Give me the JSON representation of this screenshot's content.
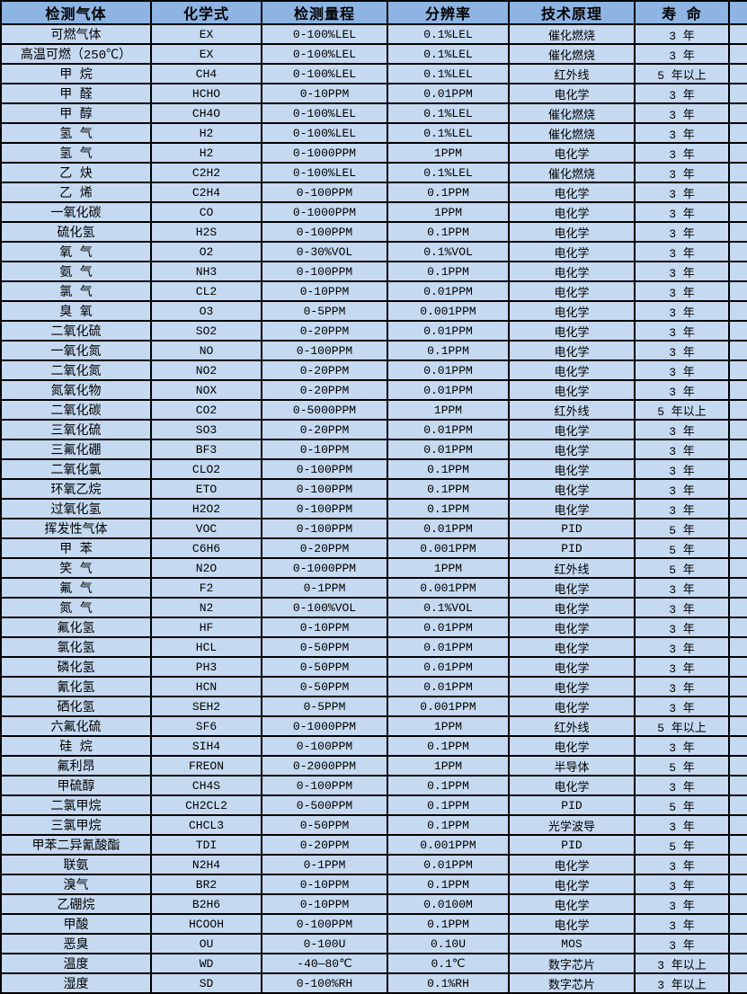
{
  "colors": {
    "header_bg": "#8db4e2",
    "row_bg": "#c5d9f1",
    "border": "#000000",
    "text": "#000000"
  },
  "table": {
    "columns": [
      {
        "key": "gas",
        "label": "检测气体"
      },
      {
        "key": "formula",
        "label": "化学式"
      },
      {
        "key": "range",
        "label": "检测量程"
      },
      {
        "key": "resolution",
        "label": "分辨率"
      },
      {
        "key": "principle",
        "label": "技术原理"
      },
      {
        "key": "lifespan",
        "label": "寿 命"
      }
    ],
    "rows": [
      [
        "可燃气体",
        "EX",
        "0-100%LEL",
        "0.1%LEL",
        "催化燃烧",
        "3 年"
      ],
      [
        "高温可燃（250℃）",
        "EX",
        "0-100%LEL",
        "0.1%LEL",
        "催化燃烧",
        "3 年"
      ],
      [
        "甲 烷",
        "CH4",
        "0-100%LEL",
        "0.1%LEL",
        "红外线",
        "5 年以上"
      ],
      [
        "甲 醛",
        "HCHO",
        "0-10PPM",
        "0.01PPM",
        "电化学",
        "3 年"
      ],
      [
        "甲 醇",
        "CH4O",
        "0-100%LEL",
        "0.1%LEL",
        "催化燃烧",
        "3 年"
      ],
      [
        "氢 气",
        "H2",
        "0-100%LEL",
        "0.1%LEL",
        "催化燃烧",
        "3 年"
      ],
      [
        "氢 气",
        "H2",
        "0-1000PPM",
        "1PPM",
        "电化学",
        "3 年"
      ],
      [
        "乙 炔",
        "C2H2",
        "0-100%LEL",
        "0.1%LEL",
        "催化燃烧",
        "3 年"
      ],
      [
        "乙 烯",
        "C2H4",
        "0-100PPM",
        "0.1PPM",
        "电化学",
        "3 年"
      ],
      [
        "一氧化碳",
        "CO",
        "0-1000PPM",
        "1PPM",
        "电化学",
        "3 年"
      ],
      [
        "硫化氢",
        "H2S",
        "0-100PPM",
        "0.1PPM",
        "电化学",
        "3 年"
      ],
      [
        "氧 气",
        "O2",
        "0-30%VOL",
        "0.1%VOL",
        "电化学",
        "3 年"
      ],
      [
        "氨 气",
        "NH3",
        "0-100PPM",
        "0.1PPM",
        "电化学",
        "3 年"
      ],
      [
        "氯 气",
        "CL2",
        "0-10PPM",
        "0.01PPM",
        "电化学",
        "3 年"
      ],
      [
        "臭 氧",
        "O3",
        "0-5PPM",
        "0.001PPM",
        "电化学",
        "3 年"
      ],
      [
        "二氧化硫",
        "SO2",
        "0-20PPM",
        "0.01PPM",
        "电化学",
        "3 年"
      ],
      [
        "一氧化氮",
        "NO",
        "0-100PPM",
        "0.1PPM",
        "电化学",
        "3 年"
      ],
      [
        "二氧化氮",
        "NO2",
        "0-20PPM",
        "0.01PPM",
        "电化学",
        "3 年"
      ],
      [
        "氮氧化物",
        "NOX",
        "0-20PPM",
        "0.01PPM",
        "电化学",
        "3 年"
      ],
      [
        "二氧化碳",
        "CO2",
        "0-5000PPM",
        "1PPM",
        "红外线",
        "5 年以上"
      ],
      [
        "三氧化硫",
        "SO3",
        "0-20PPM",
        "0.01PPM",
        "电化学",
        "3 年"
      ],
      [
        "三氟化硼",
        "BF3",
        "0-10PPM",
        "0.01PPM",
        "电化学",
        "3 年"
      ],
      [
        "二氧化氯",
        "CLO2",
        "0-100PPM",
        "0.1PPM",
        "电化学",
        "3 年"
      ],
      [
        "环氧乙烷",
        "ETO",
        "0-100PPM",
        "0.1PPM",
        "电化学",
        "3 年"
      ],
      [
        "过氧化氢",
        "H2O2",
        "0-100PPM",
        "0.1PPM",
        "电化学",
        "3 年"
      ],
      [
        "挥发性气体",
        "VOC",
        "0-100PPM",
        "0.01PPM",
        "PID",
        "5 年"
      ],
      [
        "甲 苯",
        "C6H6",
        "0-20PPM",
        "0.001PPM",
        "PID",
        "5 年"
      ],
      [
        "笑 气",
        "N2O",
        "0-1000PPM",
        "1PPM",
        "红外线",
        "5 年"
      ],
      [
        "氟 气",
        "F2",
        "0-1PPM",
        "0.001PPM",
        "电化学",
        "3 年"
      ],
      [
        "氮 气",
        "N2",
        "0-100%VOL",
        "0.1%VOL",
        "电化学",
        "3 年"
      ],
      [
        "氟化氢",
        "HF",
        "0-10PPM",
        "0.01PPM",
        "电化学",
        "3 年"
      ],
      [
        "氯化氢",
        "HCL",
        "0-50PPM",
        "0.01PPM",
        "电化学",
        "3 年"
      ],
      [
        "磷化氢",
        "PH3",
        "0-50PPM",
        "0.01PPM",
        "电化学",
        "3 年"
      ],
      [
        "氰化氢",
        "HCN",
        "0-50PPM",
        "0.01PPM",
        "电化学",
        "3 年"
      ],
      [
        "硒化氢",
        "SEH2",
        "0-5PPM",
        "0.001PPM",
        "电化学",
        "3 年"
      ],
      [
        "六氟化硫",
        "SF6",
        "0-1000PPM",
        "1PPM",
        "红外线",
        "5 年以上"
      ],
      [
        "硅 烷",
        "SIH4",
        "0-100PPM",
        "0.1PPM",
        "电化学",
        "3 年"
      ],
      [
        "氟利昂",
        "FREON",
        "0-2000PPM",
        "1PPM",
        "半导体",
        "5 年"
      ],
      [
        "甲硫醇",
        "CH4S",
        "0-100PPM",
        "0.1PPM",
        "电化学",
        "3 年"
      ],
      [
        "二氯甲烷",
        "CH2CL2",
        "0-500PPM",
        "0.1PPM",
        "PID",
        "5 年"
      ],
      [
        "三氯甲烷",
        "CHCL3",
        "0-50PPM",
        "0.1PPM",
        "光学波导",
        "3 年"
      ],
      [
        "甲苯二异氰酸酯",
        "TDI",
        "0-20PPM",
        "0.001PPM",
        "PID",
        "5 年"
      ],
      [
        "联氨",
        "N2H4",
        "0-1PPM",
        "0.01PPM",
        "电化学",
        "3 年"
      ],
      [
        "溴气",
        "BR2",
        "0-10PPM",
        "0.1PPM",
        "电化学",
        "3 年"
      ],
      [
        "乙硼烷",
        "B2H6",
        "0-10PPM",
        "0.0100M",
        "电化学",
        "3 年"
      ],
      [
        "甲酸",
        "HCOOH",
        "0-100PPM",
        "0.1PPM",
        "电化学",
        "3 年"
      ],
      [
        "恶臭",
        "OU",
        "0-100U",
        "0.10U",
        "MOS",
        "3 年"
      ],
      [
        "温度",
        "WD",
        "-40—80℃",
        "0.1℃",
        "数字芯片",
        "3 年以上"
      ],
      [
        "湿度",
        "SD",
        "0-100%RH",
        "0.1%RH",
        "数字芯片",
        "3 年以上"
      ]
    ]
  }
}
